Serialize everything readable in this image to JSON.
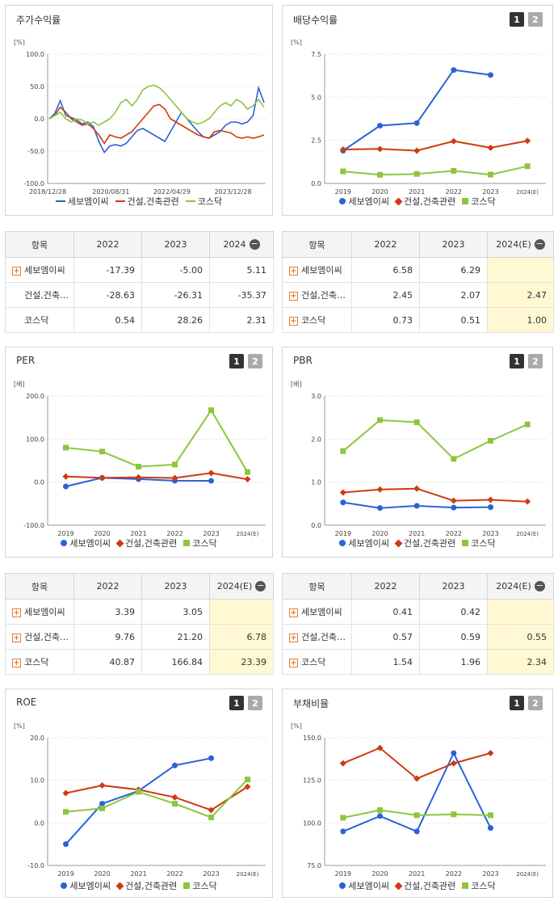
{
  "colors": {
    "company": "#2a62d7",
    "industry": "#cf3a10",
    "kosdaq": "#8cc63e"
  },
  "tabs": [
    "1",
    "2"
  ],
  "chart_data": [
    {
      "id": "price",
      "type": "line",
      "title": "주가수익률",
      "unit": "[%]",
      "ylim": [
        -100,
        100
      ],
      "yticks": [
        "100.0",
        "50.0",
        "0.0",
        "-50.0",
        "-100.0"
      ],
      "xticks": [
        "2018/12/28",
        "2020/08/31",
        "2022/04/29",
        "2023/12/28"
      ],
      "series": [
        {
          "name": "세보엠이씨",
          "values": [
            0,
            8,
            28,
            5,
            2,
            -2,
            -8,
            -5,
            -12,
            -35,
            -52,
            -42,
            -40,
            -42,
            -38,
            -28,
            -18,
            -15,
            -20,
            -25,
            -30,
            -35,
            -20,
            -5,
            10,
            0,
            -10,
            -20,
            -28,
            -30,
            -25,
            -20,
            -10,
            -5,
            -5,
            -8,
            -5,
            5,
            48,
            25
          ]
        },
        {
          "name": "건설,건축관련",
          "values": [
            0,
            5,
            18,
            10,
            0,
            -5,
            -10,
            -8,
            -15,
            -25,
            -38,
            -25,
            -28,
            -30,
            -25,
            -20,
            -10,
            0,
            10,
            20,
            22,
            15,
            0,
            -5,
            -10,
            -15,
            -20,
            -25,
            -28,
            -30,
            -20,
            -18,
            -20,
            -22,
            -28,
            -30,
            -28,
            -30,
            -28,
            -25
          ]
        },
        {
          "name": "코스닥",
          "values": [
            0,
            5,
            10,
            0,
            -5,
            0,
            -2,
            -8,
            -5,
            -10,
            -5,
            0,
            10,
            25,
            30,
            20,
            30,
            45,
            50,
            52,
            48,
            40,
            30,
            20,
            10,
            0,
            -5,
            -8,
            -5,
            0,
            10,
            20,
            25,
            20,
            30,
            25,
            15,
            20,
            30,
            18
          ]
        }
      ]
    },
    {
      "id": "dividend",
      "type": "line",
      "title": "배당수익률",
      "unit": "[%]",
      "ylim": [
        0,
        7.5
      ],
      "yticks": [
        "7.5",
        "5.0",
        "2.5",
        "0.0"
      ],
      "xticks": [
        "2019",
        "2020",
        "2021",
        "2022",
        "2023",
        "2024(E)"
      ],
      "series": [
        {
          "name": "세보엠이씨",
          "values": [
            1.9,
            3.35,
            3.5,
            6.58,
            6.29,
            null
          ]
        },
        {
          "name": "건설,건축관련",
          "values": [
            1.97,
            2.0,
            1.9,
            2.45,
            2.07,
            2.47
          ]
        },
        {
          "name": "코스닥",
          "values": [
            0.7,
            0.5,
            0.55,
            0.73,
            0.51,
            1.0
          ]
        }
      ]
    },
    {
      "id": "per",
      "type": "line",
      "title": "PER",
      "unit": "[배]",
      "ylim": [
        -100,
        200
      ],
      "yticks": [
        "200.0",
        "100.0",
        "0.0",
        "-100.0"
      ],
      "xticks": [
        "2019",
        "2020",
        "2021",
        "2022",
        "2023",
        "2024(E)"
      ],
      "series": [
        {
          "name": "세보엠이씨",
          "values": [
            -10,
            10,
            7,
            3.39,
            3.05,
            null
          ]
        },
        {
          "name": "건설,건축관련",
          "values": [
            13,
            10,
            11,
            9.76,
            21.2,
            6.78
          ]
        },
        {
          "name": "코스닥",
          "values": [
            80,
            71,
            36,
            40.87,
            166.84,
            23.39
          ]
        }
      ]
    },
    {
      "id": "pbr",
      "type": "line",
      "title": "PBR",
      "unit": "[배]",
      "ylim": [
        0,
        3
      ],
      "yticks": [
        "3.0",
        "2.0",
        "1.0",
        "0.0"
      ],
      "xticks": [
        "2019",
        "2020",
        "2021",
        "2022",
        "2023",
        "2024(E)"
      ],
      "series": [
        {
          "name": "세보엠이씨",
          "values": [
            0.53,
            0.4,
            0.45,
            0.41,
            0.42,
            null
          ]
        },
        {
          "name": "건설,건축관련",
          "values": [
            0.76,
            0.83,
            0.85,
            0.57,
            0.59,
            0.55
          ]
        },
        {
          "name": "코스닥",
          "values": [
            1.72,
            2.44,
            2.39,
            1.54,
            1.96,
            2.34
          ]
        }
      ]
    },
    {
      "id": "roe",
      "type": "line",
      "title": "ROE",
      "unit": "[%]",
      "ylim": [
        -10,
        20
      ],
      "yticks": [
        "20.0",
        "10.0",
        "0.0",
        "-10.0"
      ],
      "xticks": [
        "2019",
        "2020",
        "2021",
        "2022",
        "2023",
        "2024(E)"
      ],
      "series": [
        {
          "name": "세보엠이씨",
          "values": [
            -5,
            4.5,
            7.5,
            13.5,
            15.2,
            null
          ]
        },
        {
          "name": "건설,건축관련",
          "values": [
            7,
            8.8,
            7.8,
            6,
            3,
            8.5
          ]
        },
        {
          "name": "코스닥",
          "values": [
            2.6,
            3.4,
            7.3,
            4.5,
            1.3,
            10.2
          ]
        }
      ]
    },
    {
      "id": "debt",
      "type": "line",
      "title": "부채비율",
      "unit": "[%]",
      "ylim": [
        75,
        150
      ],
      "yticks": [
        "150.0",
        "125.0",
        "100.0",
        "75.0"
      ],
      "xticks": [
        "2019",
        "2020",
        "2021",
        "2022",
        "2023",
        "2024(E)"
      ],
      "series": [
        {
          "name": "세보엠이씨",
          "values": [
            95,
            104,
            95,
            141,
            97,
            null
          ]
        },
        {
          "name": "건설,건축관련",
          "values": [
            135,
            144,
            126,
            135,
            141,
            null
          ]
        },
        {
          "name": "코스닥",
          "values": [
            103,
            107.5,
            104.5,
            105,
            104.5,
            null
          ]
        }
      ]
    }
  ],
  "legend_labels": [
    "세보엠이씨",
    "건설,건축관련",
    "코스닥"
  ],
  "tables": [
    {
      "id": "price-table",
      "header": {
        "label": "항목",
        "cols": [
          "2022",
          "2023",
          "2024"
        ]
      },
      "rows": [
        {
          "name": "세보엠이씨",
          "plus": true,
          "values": [
            "-17.39",
            "-5.00",
            "5.11"
          ]
        },
        {
          "name": "건설,건축…",
          "plus": false,
          "values": [
            "-28.63",
            "-26.31",
            "-35.37"
          ]
        },
        {
          "name": "코스닥",
          "plus": false,
          "values": [
            "0.54",
            "28.26",
            "2.31"
          ]
        }
      ]
    },
    {
      "id": "dividend-table",
      "header": {
        "label": "항목",
        "cols": [
          "2022",
          "2023",
          "2024(E)"
        ]
      },
      "rows": [
        {
          "name": "세보엠이씨",
          "plus": true,
          "values": [
            "6.58",
            "6.29",
            ""
          ]
        },
        {
          "name": "건설,건축…",
          "plus": true,
          "values": [
            "2.45",
            "2.07",
            "2.47"
          ]
        },
        {
          "name": "코스닥",
          "plus": true,
          "values": [
            "0.73",
            "0.51",
            "1.00"
          ]
        }
      ]
    },
    {
      "id": "per-table",
      "header": {
        "label": "항목",
        "cols": [
          "2022",
          "2023",
          "2024(E)"
        ]
      },
      "rows": [
        {
          "name": "세보엠이씨",
          "plus": true,
          "values": [
            "3.39",
            "3.05",
            ""
          ]
        },
        {
          "name": "건설,건축…",
          "plus": true,
          "values": [
            "9.76",
            "21.20",
            "6.78"
          ]
        },
        {
          "name": "코스닥",
          "plus": true,
          "values": [
            "40.87",
            "166.84",
            "23.39"
          ]
        }
      ]
    },
    {
      "id": "pbr-table",
      "header": {
        "label": "항목",
        "cols": [
          "2022",
          "2023",
          "2024(E)"
        ]
      },
      "rows": [
        {
          "name": "세보엠이씨",
          "plus": true,
          "values": [
            "0.41",
            "0.42",
            ""
          ]
        },
        {
          "name": "건설,건축…",
          "plus": true,
          "values": [
            "0.57",
            "0.59",
            "0.55"
          ]
        },
        {
          "name": "코스닥",
          "plus": true,
          "values": [
            "1.54",
            "1.96",
            "2.34"
          ]
        }
      ]
    }
  ]
}
